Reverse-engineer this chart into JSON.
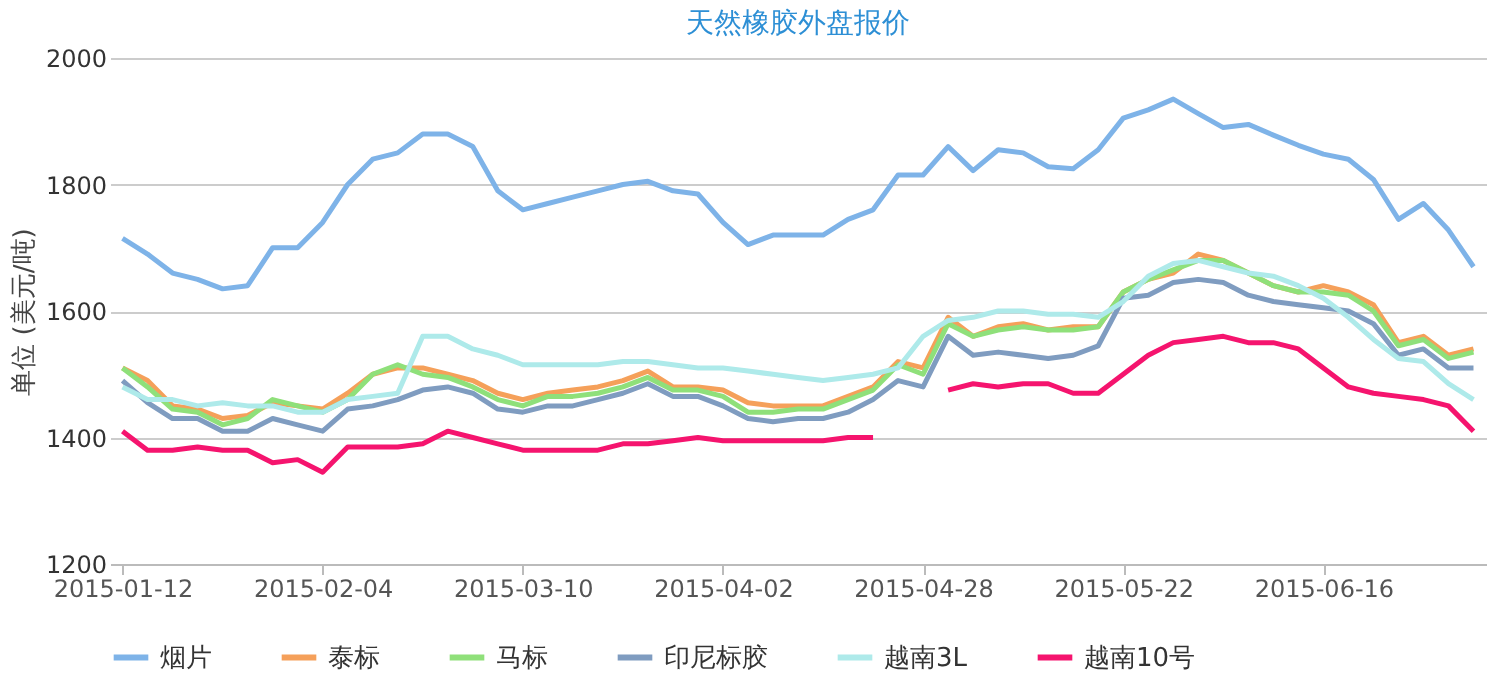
{
  "chart_data": {
    "type": "line",
    "title": "天然橡胶外盘报价",
    "ylabel": "单位 (美元/吨)",
    "categories": [
      "2015-01-12",
      null,
      null,
      null,
      null,
      null,
      null,
      null,
      "2015-02-04",
      null,
      null,
      null,
      null,
      null,
      null,
      null,
      "2015-03-10",
      null,
      null,
      null,
      null,
      null,
      null,
      null,
      "2015-04-02",
      null,
      null,
      null,
      null,
      null,
      null,
      null,
      "2015-04-28",
      null,
      null,
      null,
      null,
      null,
      null,
      null,
      "2015-05-22",
      null,
      null,
      null,
      null,
      null,
      null,
      null,
      "2015-06-16",
      null,
      null,
      null,
      null,
      null,
      null
    ],
    "ylim": [
      1200,
      2000
    ],
    "yticks": [
      1200,
      1400,
      1600,
      1800,
      2000
    ],
    "grid": "y",
    "legend": "bottom",
    "marker": "none",
    "line_style": "solid",
    "series": [
      {
        "name": "烟片",
        "color": "#7eb3e8",
        "values": [
          1715,
          1690,
          1660,
          1650,
          1635,
          1640,
          1700,
          1700,
          1740,
          1800,
          1840,
          1850,
          1880,
          1880,
          1860,
          1790,
          1760,
          1770,
          1780,
          1790,
          1800,
          1805,
          1790,
          1785,
          1740,
          1705,
          1720,
          1720,
          1720,
          1745,
          1760,
          1815,
          1815,
          1860,
          1822,
          1855,
          1850,
          1828,
          1825,
          1855,
          1905,
          1918,
          1935,
          1912,
          1890,
          1895,
          1878,
          1862,
          1848,
          1840,
          1808,
          1745,
          1770,
          1728,
          1670
        ]
      },
      {
        "name": "泰标",
        "color": "#f5a05a",
        "values": [
          1510,
          1490,
          1450,
          1445,
          1430,
          1435,
          1455,
          1450,
          1445,
          1470,
          1500,
          1510,
          1510,
          1500,
          1490,
          1470,
          1460,
          1470,
          1475,
          1480,
          1490,
          1505,
          1480,
          1480,
          1475,
          1455,
          1450,
          1450,
          1450,
          1465,
          1480,
          1520,
          1510,
          1590,
          1560,
          1575,
          1580,
          1570,
          1575,
          1575,
          1630,
          1650,
          1660,
          1690,
          1680,
          1660,
          1640,
          1630,
          1640,
          1630,
          1610,
          1550,
          1560,
          1530,
          1540
        ]
      },
      {
        "name": "马标",
        "color": "#8fe07a",
        "values": [
          1510,
          1480,
          1445,
          1440,
          1420,
          1430,
          1460,
          1450,
          1440,
          1460,
          1500,
          1515,
          1500,
          1495,
          1480,
          1460,
          1450,
          1465,
          1465,
          1470,
          1480,
          1495,
          1475,
          1475,
          1465,
          1440,
          1440,
          1445,
          1445,
          1460,
          1475,
          1515,
          1500,
          1580,
          1560,
          1570,
          1575,
          1570,
          1570,
          1575,
          1630,
          1650,
          1665,
          1680,
          1680,
          1660,
          1640,
          1630,
          1630,
          1625,
          1600,
          1545,
          1555,
          1525,
          1535
        ]
      },
      {
        "name": "印尼标胶",
        "color": "#7f9cc0",
        "values": [
          1490,
          1455,
          1430,
          1430,
          1410,
          1410,
          1430,
          1420,
          1410,
          1445,
          1450,
          1460,
          1475,
          1480,
          1470,
          1445,
          1440,
          1450,
          1450,
          1460,
          1470,
          1485,
          1465,
          1465,
          1450,
          1430,
          1425,
          1430,
          1430,
          1440,
          1460,
          1490,
          1480,
          1560,
          1530,
          1535,
          1530,
          1525,
          1530,
          1545,
          1620,
          1625,
          1645,
          1650,
          1645,
          1625,
          1615,
          1610,
          1605,
          1600,
          1580,
          1530,
          1540,
          1510,
          1510
        ]
      },
      {
        "name": "越南3L",
        "color": "#aeeaea",
        "values": [
          1480,
          1460,
          1460,
          1450,
          1455,
          1450,
          1450,
          1440,
          1440,
          1460,
          1465,
          1470,
          1560,
          1560,
          1540,
          1530,
          1515,
          1515,
          1515,
          1515,
          1520,
          1520,
          1515,
          1510,
          1510,
          1505,
          1500,
          1495,
          1490,
          1495,
          1500,
          1510,
          1560,
          1585,
          1590,
          1600,
          1600,
          1595,
          1595,
          1590,
          1615,
          1655,
          1675,
          1680,
          1670,
          1660,
          1655,
          1640,
          1620,
          1590,
          1555,
          1525,
          1520,
          1485,
          1460
        ]
      },
      {
        "name": "越南10号",
        "color": "#f5146e",
        "values": [
          1410,
          1380,
          1380,
          1385,
          1380,
          1380,
          1360,
          1365,
          1345,
          1385,
          1385,
          1385,
          1390,
          1410,
          1400,
          1390,
          1380,
          1380,
          1380,
          1380,
          1390,
          1390,
          1395,
          1400,
          1395,
          1395,
          1395,
          1395,
          1395,
          1400,
          1400,
          null,
          null,
          1475,
          1485,
          1480,
          1485,
          1485,
          1470,
          1470,
          1500,
          1530,
          1550,
          1555,
          1560,
          1550,
          1550,
          1540,
          1510,
          1480,
          1470,
          1465,
          1460,
          1450,
          1410
        ]
      }
    ]
  }
}
